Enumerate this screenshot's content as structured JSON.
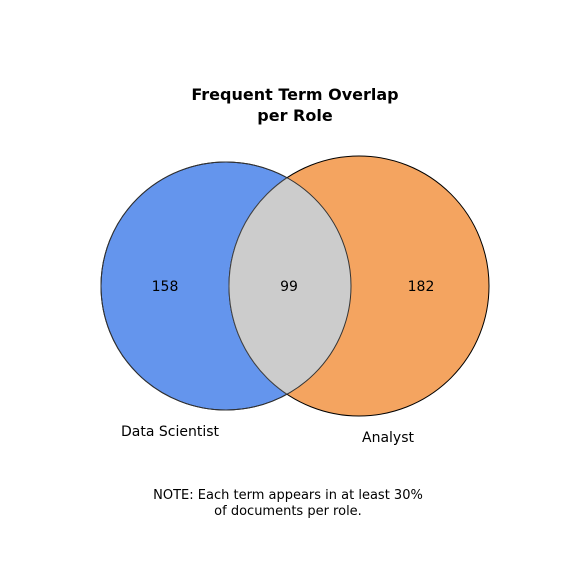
{
  "title_lines": [
    "Frequent Term Overlap",
    "per Role"
  ],
  "sets": [
    {
      "name": "Data Scientist",
      "only_count": "158",
      "color": "#6495ED"
    },
    {
      "name": "Analyst",
      "only_count": "182",
      "color": "#F4A460"
    }
  ],
  "intersection": {
    "count": "99",
    "color": "#CCCCCC"
  },
  "note_lines": [
    "NOTE: Each term appears in at least 30%",
    "of documents per role."
  ]
}
